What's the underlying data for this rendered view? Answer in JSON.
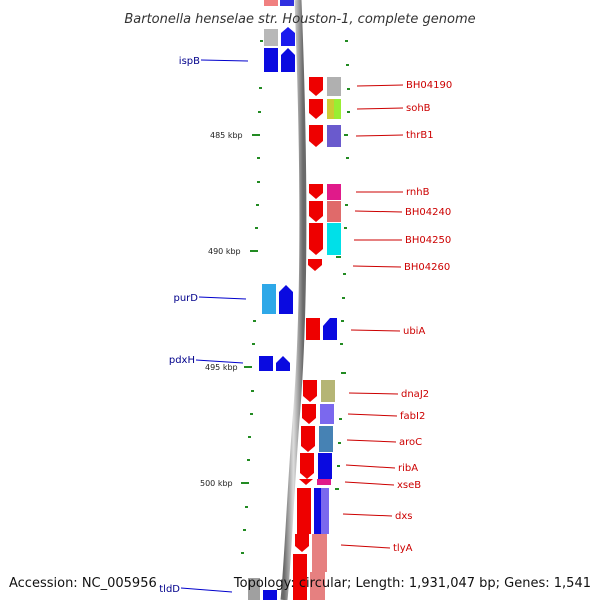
{
  "header": {
    "title": "Bartonella henselae str. Houston-1, complete genome"
  },
  "footer": {
    "accession": "Accession: NC_005956",
    "topology": "Topology: circular; Length: 1,931,047 bp; Genes: 1,541"
  },
  "colors": {
    "left_label": "#00008b",
    "right_label": "#cc0000",
    "strand_fwd": "#0000ee",
    "strand_rev": "#ee0000",
    "ruler": "#228b22"
  },
  "ticks": [
    {
      "label": "485 kbp"
    },
    {
      "label": "490 kbp"
    },
    {
      "label": "495 kbp"
    },
    {
      "label": "500 kbp"
    }
  ],
  "genes_left": [
    {
      "name": "ispB"
    },
    {
      "name": "purD"
    },
    {
      "name": "pdxH"
    },
    {
      "name": "tldD"
    }
  ],
  "genes_right": [
    {
      "name": "BH04190"
    },
    {
      "name": "sohB"
    },
    {
      "name": "thrB1"
    },
    {
      "name": "rnhB"
    },
    {
      "name": "BH04240"
    },
    {
      "name": "BH04250"
    },
    {
      "name": "BH04260"
    },
    {
      "name": "ubiA"
    },
    {
      "name": "dnaJ2"
    },
    {
      "name": "fabI2"
    },
    {
      "name": "aroC"
    },
    {
      "name": "ribA"
    },
    {
      "name": "xseB"
    },
    {
      "name": "dxs"
    },
    {
      "name": "tlyA"
    }
  ]
}
